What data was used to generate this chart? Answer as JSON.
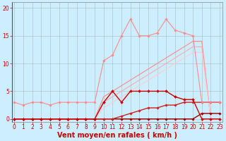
{
  "background_color": "#cceeff",
  "grid_color": "#aabbbb",
  "xlabel": "Vent moyen/en rafales ( km/h )",
  "xlabel_color": "#cc0000",
  "xlabel_fontsize": 7,
  "yticks": [
    0,
    5,
    10,
    15,
    20
  ],
  "xticks": [
    0,
    1,
    2,
    3,
    4,
    5,
    6,
    7,
    8,
    9,
    10,
    11,
    12,
    13,
    14,
    15,
    16,
    17,
    18,
    19,
    20,
    21,
    22,
    23
  ],
  "xlim": [
    -0.3,
    23.3
  ],
  "ylim": [
    -0.5,
    21
  ],
  "tick_color": "#cc0000",
  "tick_fontsize": 5.5,
  "series": [
    {
      "x": [
        0,
        1,
        2,
        3,
        4,
        5,
        6,
        7,
        8,
        9,
        10,
        11,
        12,
        13,
        14,
        15,
        16,
        17,
        18,
        19,
        20,
        21,
        22,
        23
      ],
      "y": [
        0,
        0,
        0,
        0,
        0,
        0,
        0,
        0,
        0,
        0,
        0,
        0,
        0,
        0,
        0,
        0,
        0,
        0,
        0,
        0,
        0,
        1,
        1,
        1
      ],
      "color": "#990000",
      "lw": 1.0,
      "marker": "D",
      "ms": 1.8
    },
    {
      "x": [
        0,
        1,
        2,
        3,
        4,
        5,
        6,
        7,
        8,
        9,
        10,
        11,
        12,
        13,
        14,
        15,
        16,
        17,
        18,
        19,
        20,
        21,
        22,
        23
      ],
      "y": [
        0,
        0,
        0,
        0,
        0,
        0,
        0,
        0,
        0,
        0,
        0,
        0,
        0.5,
        1,
        1.5,
        2,
        2,
        2.5,
        2.5,
        3,
        3,
        3,
        3,
        3
      ],
      "color": "#cc2222",
      "lw": 1.0,
      "marker": "D",
      "ms": 1.8
    },
    {
      "x": [
        0,
        1,
        2,
        3,
        4,
        5,
        6,
        7,
        8,
        9,
        10,
        11,
        12,
        13,
        14,
        15,
        16,
        17,
        18,
        19,
        20,
        21,
        22,
        23
      ],
      "y": [
        0,
        0,
        0,
        0,
        0,
        0,
        0,
        0,
        0,
        0,
        3,
        5,
        3,
        5,
        5,
        5,
        5,
        5,
        4,
        3.5,
        3.5,
        0,
        0,
        0
      ],
      "color": "#cc0000",
      "lw": 1.0,
      "marker": "D",
      "ms": 2.0
    },
    {
      "x": [
        0,
        1,
        2,
        3,
        4,
        5,
        6,
        7,
        8,
        9,
        10,
        11,
        12,
        13,
        14,
        15,
        16,
        17,
        18,
        19,
        20,
        21,
        22,
        23
      ],
      "y": [
        3,
        2.5,
        3,
        3,
        2.5,
        3,
        3,
        3,
        3,
        3,
        10.5,
        11.5,
        15,
        18,
        15,
        15,
        15.5,
        18,
        16,
        15.5,
        15,
        3,
        3,
        3
      ],
      "color": "#ff8888",
      "lw": 0.8,
      "marker": "D",
      "ms": 1.8
    },
    {
      "x": [
        0,
        1,
        2,
        3,
        4,
        5,
        6,
        7,
        8,
        9,
        10,
        11,
        12,
        13,
        14,
        15,
        16,
        17,
        18,
        19,
        20,
        21,
        22,
        23
      ],
      "y": [
        0,
        0,
        0,
        0,
        0,
        0,
        0,
        0,
        0,
        0,
        4,
        5,
        6,
        7,
        8,
        9,
        10,
        11,
        12,
        13,
        14,
        14,
        0,
        0
      ],
      "color": "#ff8888",
      "lw": 0.8,
      "marker": null,
      "ms": 0
    },
    {
      "x": [
        0,
        1,
        2,
        3,
        4,
        5,
        6,
        7,
        8,
        9,
        10,
        11,
        12,
        13,
        14,
        15,
        16,
        17,
        18,
        19,
        20,
        21,
        22,
        23
      ],
      "y": [
        0,
        0,
        0,
        0,
        0,
        0,
        0,
        0,
        0,
        0,
        3,
        4,
        5,
        6,
        7,
        8,
        9,
        10,
        11,
        12,
        13,
        13,
        0,
        0
      ],
      "color": "#ffaaaa",
      "lw": 0.8,
      "marker": null,
      "ms": 0
    },
    {
      "x": [
        0,
        1,
        2,
        3,
        4,
        5,
        6,
        7,
        8,
        9,
        10,
        11,
        12,
        13,
        14,
        15,
        16,
        17,
        18,
        19,
        20,
        21,
        22,
        23
      ],
      "y": [
        0,
        0,
        0,
        0,
        0,
        0,
        0,
        0,
        0,
        0,
        2,
        3,
        4,
        5,
        6,
        7,
        8,
        9,
        10,
        11,
        12,
        12,
        0,
        0
      ],
      "color": "#ffcccc",
      "lw": 0.8,
      "marker": null,
      "ms": 0
    }
  ]
}
